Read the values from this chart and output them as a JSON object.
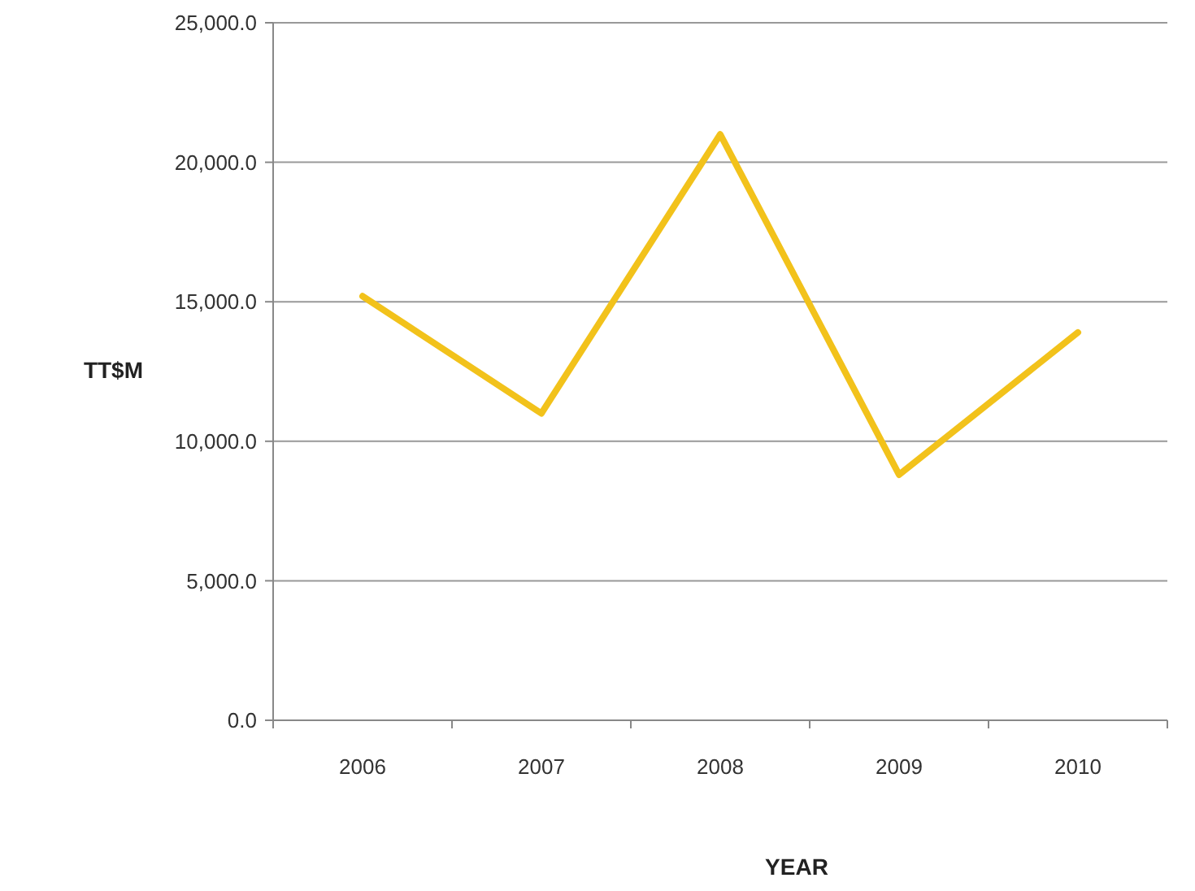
{
  "chart_data": {
    "type": "line",
    "xlabel": "YEAR",
    "ylabel": "TT$M",
    "categories": [
      "2006",
      "2007",
      "2008",
      "2009",
      "2010"
    ],
    "series": [
      {
        "color": "#f2c21b",
        "values": [
          15200,
          11000,
          21000,
          8800,
          13900
        ]
      }
    ],
    "ylim": [
      0,
      25000
    ],
    "yticks": [
      {
        "value": 0,
        "label": "0.0"
      },
      {
        "value": 5000,
        "label": "5,000.0"
      },
      {
        "value": 10000,
        "label": "10,000.0"
      },
      {
        "value": 15000,
        "label": "15,000.0"
      },
      {
        "value": 20000,
        "label": "20,000.0"
      },
      {
        "value": 25000,
        "label": "25,000.0"
      }
    ],
    "grid": "y",
    "marker": "none",
    "line_style": "solid"
  }
}
